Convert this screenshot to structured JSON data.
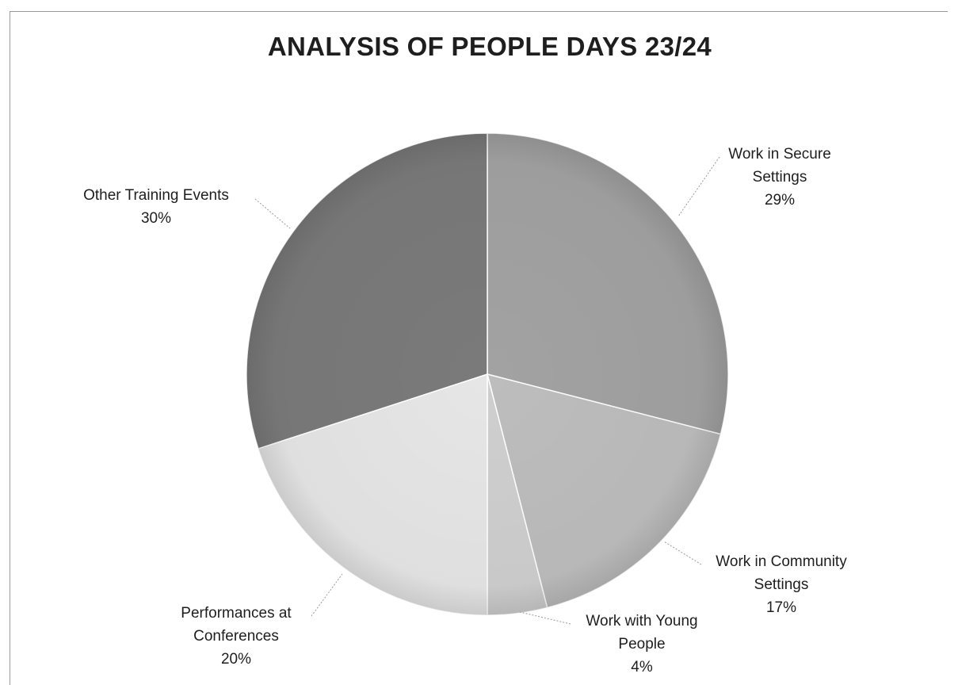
{
  "chart_data": {
    "type": "pie",
    "title": "ANALYSIS OF PEOPLE DAYS 23/24",
    "start_angle_deg": 0,
    "direction": "clockwise",
    "slices": [
      {
        "label_lines": [
          "Work in Secure",
          "Settings"
        ],
        "value": 29,
        "pct_label": "29%",
        "color": "#a2a2a2"
      },
      {
        "label_lines": [
          "Work in Community",
          "Settings"
        ],
        "value": 17,
        "pct_label": "17%",
        "color": "#bdbdbd"
      },
      {
        "label_lines": [
          "Work with Young",
          "People"
        ],
        "value": 4,
        "pct_label": "4%",
        "color": "#cfcfcf"
      },
      {
        "label_lines": [
          "Performances at",
          "Conferences"
        ],
        "value": 20,
        "pct_label": "20%",
        "color": "#e6e6e6"
      },
      {
        "label_lines": [
          "Other Training Events"
        ],
        "value": 30,
        "pct_label": "30%",
        "color": "#7a7a7a"
      }
    ]
  }
}
